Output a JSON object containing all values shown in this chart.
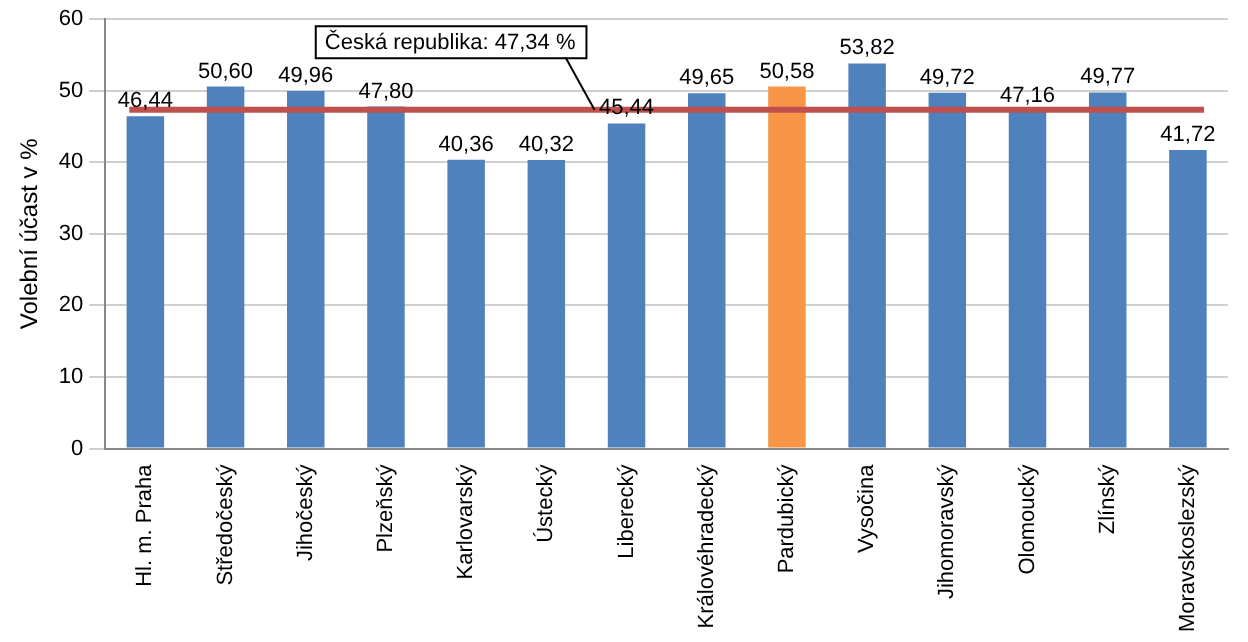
{
  "chart_data": {
    "type": "bar",
    "ylabel": "Volební účast v %",
    "categories": [
      "Hl. m. Praha",
      "Středočeský",
      "Jihočeský",
      "Plzeňský",
      "Karlovarský",
      "Ústecký",
      "Liberecký",
      "Královéhradecký",
      "Pardubický",
      "Vysočina",
      "Jihomoravský",
      "Olomoucký",
      "Zlínský",
      "Moravskoslezský"
    ],
    "values": [
      46.44,
      50.6,
      49.96,
      47.8,
      40.36,
      40.32,
      45.44,
      49.65,
      50.58,
      53.82,
      49.72,
      47.16,
      49.77,
      41.72
    ],
    "colors": [
      "#4f81bd",
      "#4f81bd",
      "#4f81bd",
      "#4f81bd",
      "#4f81bd",
      "#4f81bd",
      "#4f81bd",
      "#4f81bd",
      "#f79646",
      "#4f81bd",
      "#4f81bd",
      "#4f81bd",
      "#4f81bd",
      "#4f81bd"
    ],
    "value_labels": [
      "46,44",
      "50,60",
      "49,96",
      "47,80",
      "40,36",
      "40,32",
      "45,44",
      "49,65",
      "50,58",
      "53,82",
      "49,72",
      "47,16",
      "49,77",
      "41,72"
    ],
    "ylim": [
      0,
      60
    ],
    "yticks": [
      0,
      10,
      20,
      30,
      40,
      50,
      60
    ],
    "grid": "y",
    "legend": false,
    "ref_lines": [
      {
        "axis": "y",
        "value": 47.34,
        "label": "Česká republika: 47,34 %",
        "color": "#c0504d"
      }
    ]
  }
}
